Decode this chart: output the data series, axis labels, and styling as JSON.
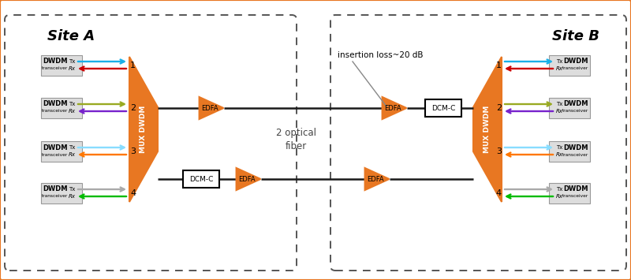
{
  "bg_color": "#ffffff",
  "border_color": "#e87722",
  "site_a_label": "Site A",
  "site_b_label": "Site B",
  "orange": "#e87722",
  "line_color": "#1a1a1a",
  "transceiver_colors": {
    "1_tx": "#1ab0e8",
    "1_rx": "#cc0000",
    "2_tx": "#99aa22",
    "2_rx": "#7722cc",
    "3_tx": "#88ddff",
    "3_rx": "#ff7700",
    "4_tx": "#aaaaaa",
    "4_rx": "#00bb00"
  },
  "insertion_loss_label": "insertion loss~20 dB",
  "fiber_label": "2 optical\nfiber",
  "channel_labels": [
    "1",
    "2",
    "3",
    "4"
  ]
}
